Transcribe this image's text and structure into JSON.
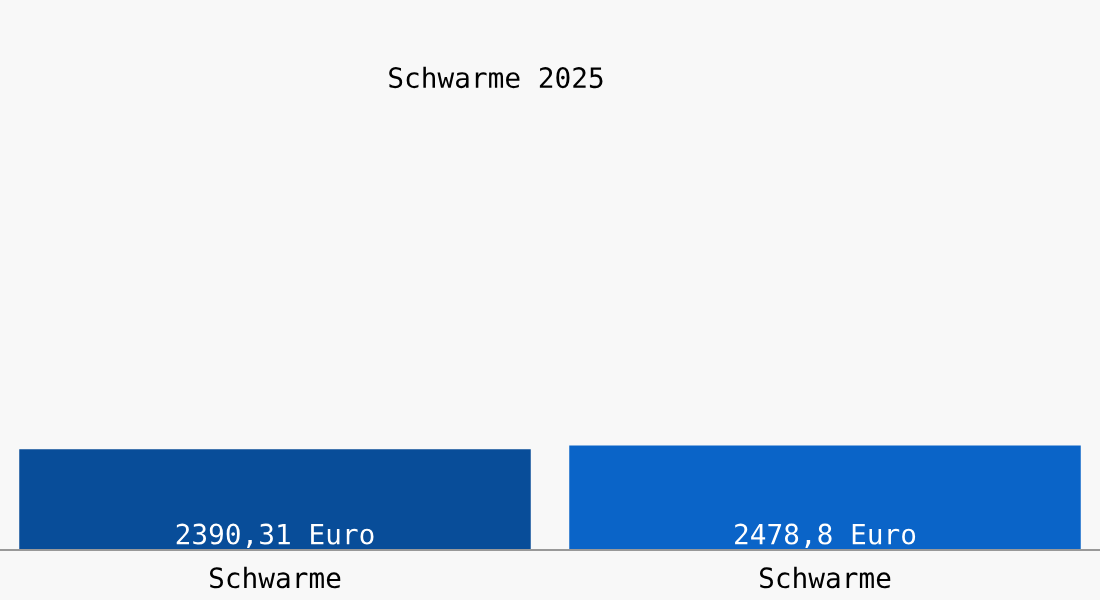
{
  "chart_data": {
    "type": "bar",
    "title": "Schwarme 2025",
    "categories": [
      "Schwarme",
      "Schwarme"
    ],
    "values": [
      2390.31,
      2478.8
    ],
    "colors": [
      "#084d99",
      "#0a64c8"
    ],
    "value_labels": [
      "2390,31 Euro",
      "2478,8 Euro"
    ],
    "grid": false,
    "legend": false
  }
}
